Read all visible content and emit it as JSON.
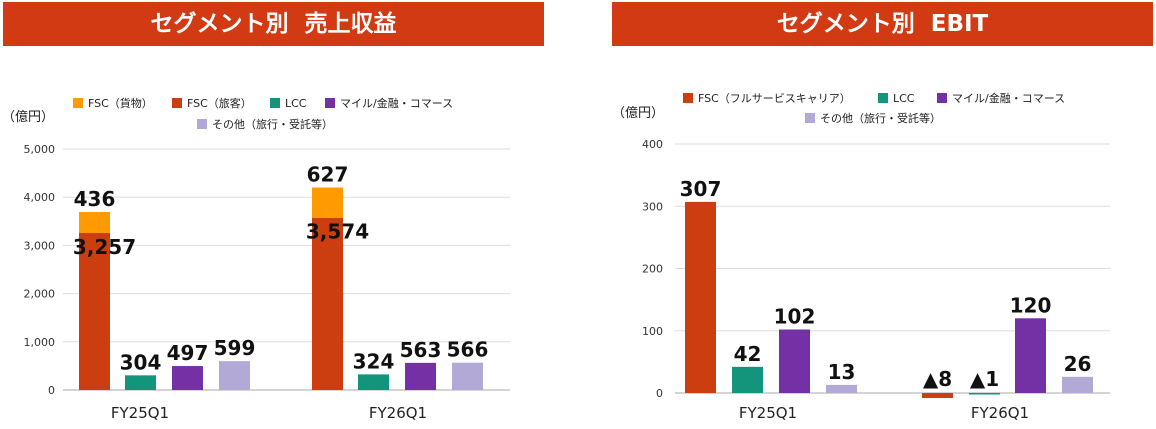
{
  "colors": {
    "banner": "#d13a13",
    "fsc_cargo": "#ff9a00",
    "fsc_passenger": "#cc3d10",
    "fsc": "#cc3d10",
    "lcc": "#12957a",
    "mile": "#7431a6",
    "other": "#b3a9d6"
  },
  "left": {
    "banner_title": "セグメント別  売上収益",
    "unit": "（億円）",
    "legend": [
      {
        "label": "FSC（貨物）",
        "color_key": "fsc_cargo"
      },
      {
        "label": "FSC（旅客）",
        "color_key": "fsc_passenger"
      },
      {
        "label": "LCC",
        "color_key": "lcc"
      },
      {
        "label": "マイル/金融・コマース",
        "color_key": "mile"
      },
      {
        "label": "その他（旅行・受託等）",
        "color_key": "other"
      }
    ]
  },
  "right": {
    "banner_title": "セグメント別  EBIT",
    "unit": "（億円）",
    "legend": [
      {
        "label": "FSC（フルサービスキャリア）",
        "color_key": "fsc"
      },
      {
        "label": "LCC",
        "color_key": "lcc"
      },
      {
        "label": "マイル/金融・コマース",
        "color_key": "mile"
      },
      {
        "label": "その他（旅行・受託等）",
        "color_key": "other"
      }
    ]
  },
  "chart_data": [
    {
      "type": "bar",
      "title": "セグメント別  売上収益",
      "ylabel": "（億円）",
      "categories": [
        "FY25Q1",
        "FY26Q1"
      ],
      "ylim": [
        0,
        5000
      ],
      "yticks": [
        0,
        1000,
        2000,
        3000,
        4000,
        5000
      ],
      "ytick_labels": [
        "0",
        "1,000",
        "2,000",
        "3,000",
        "4,000",
        "5,000"
      ],
      "stacked_bar": {
        "series": [
          {
            "name": "FSC（旅客）",
            "values": [
              3257,
              3574
            ],
            "labels": [
              "3,257",
              "3,574"
            ],
            "color_key": "fsc_passenger"
          },
          {
            "name": "FSC（貨物）",
            "values": [
              436,
              627
            ],
            "labels": [
              "436",
              "627"
            ],
            "color_key": "fsc_cargo"
          }
        ]
      },
      "series": [
        {
          "name": "LCC",
          "values": [
            304,
            324
          ],
          "labels": [
            "304",
            "324"
          ],
          "color_key": "lcc"
        },
        {
          "name": "マイル/金融・コマース",
          "values": [
            497,
            563
          ],
          "labels": [
            "497",
            "563"
          ],
          "color_key": "mile"
        },
        {
          "name": "その他（旅行・受託等）",
          "values": [
            599,
            566
          ],
          "labels": [
            "599",
            "566"
          ],
          "color_key": "other"
        }
      ],
      "grid": true,
      "legend_position": "top"
    },
    {
      "type": "bar",
      "title": "セグメント別  EBIT",
      "ylabel": "（億円）",
      "categories": [
        "FY25Q1",
        "FY26Q1"
      ],
      "ylim": [
        0,
        400
      ],
      "yticks": [
        0,
        100,
        200,
        300,
        400
      ],
      "ytick_labels": [
        "0",
        "100",
        "200",
        "300",
        "400"
      ],
      "series": [
        {
          "name": "FSC（フルサービスキャリア）",
          "values": [
            307,
            -8
          ],
          "labels": [
            "307",
            "▲8"
          ],
          "color_key": "fsc"
        },
        {
          "name": "LCC",
          "values": [
            42,
            -1
          ],
          "labels": [
            "42",
            "▲1"
          ],
          "color_key": "lcc"
        },
        {
          "name": "マイル/金融・コマース",
          "values": [
            102,
            120
          ],
          "labels": [
            "102",
            "120"
          ],
          "color_key": "mile"
        },
        {
          "name": "その他（旅行・受託等）",
          "values": [
            13,
            26
          ],
          "labels": [
            "13",
            "26"
          ],
          "color_key": "other"
        }
      ],
      "grid": true,
      "legend_position": "top"
    }
  ]
}
